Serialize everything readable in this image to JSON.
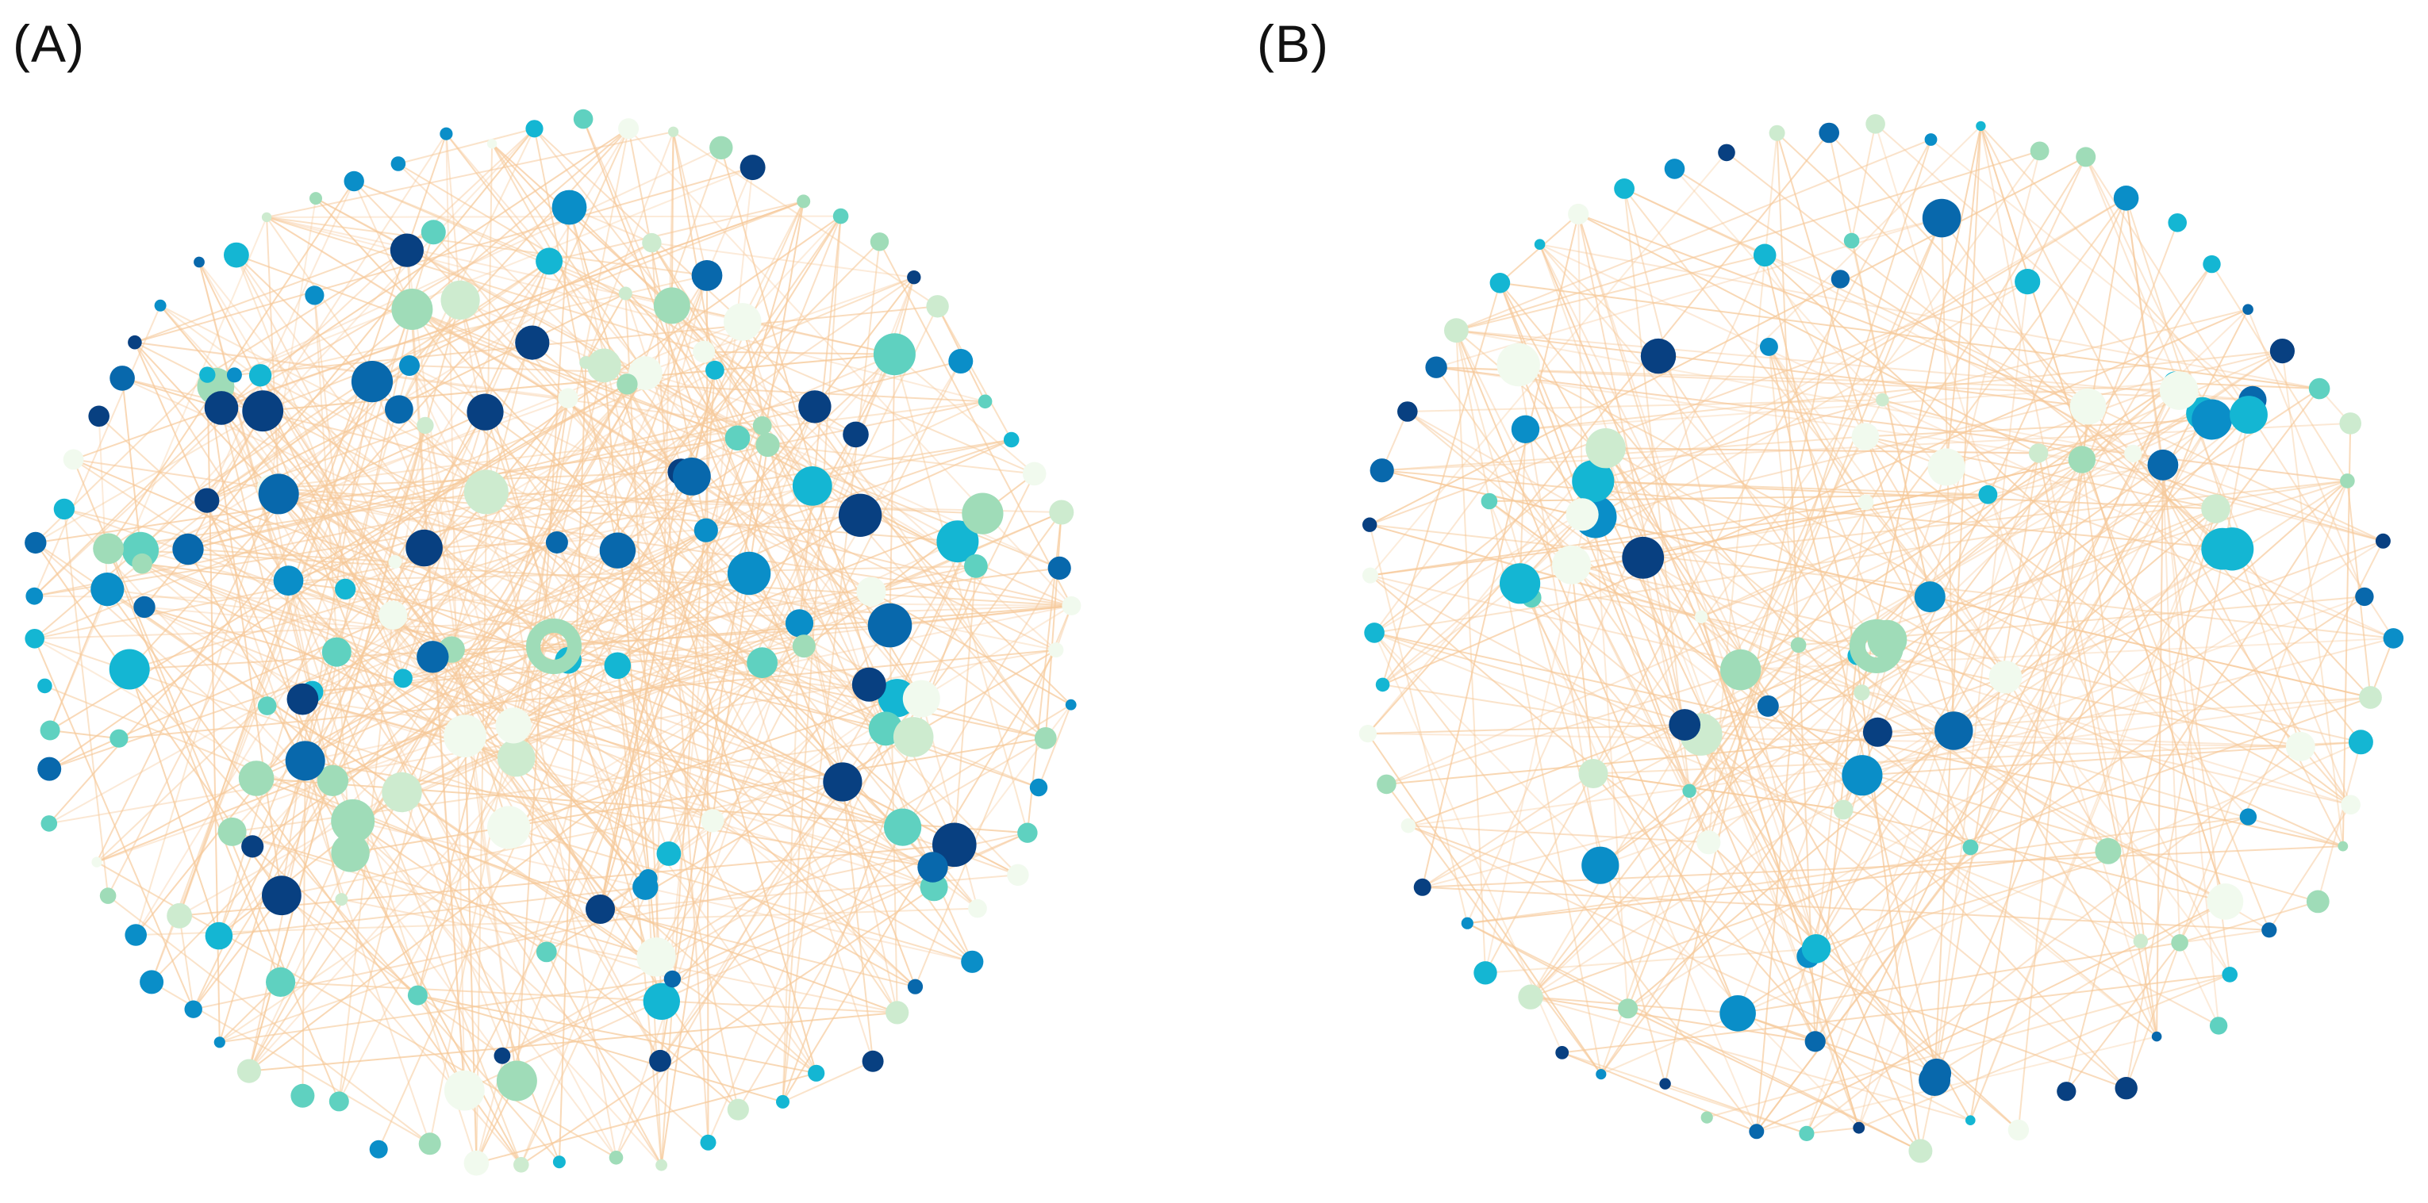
{
  "figure": {
    "panels": [
      {
        "label": "(A)"
      },
      {
        "label": "(B)"
      }
    ]
  },
  "colors": {
    "edge": "#f6c99a",
    "node_scale": [
      "#f1faee",
      "#cdebcf",
      "#9fdcb8",
      "#5fd1c0",
      "#14b6d3",
      "#0a8ec8",
      "#0868ac",
      "#084081"
    ]
  }
}
